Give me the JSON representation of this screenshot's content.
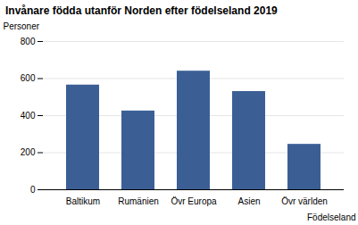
{
  "chart_data": {
    "type": "bar",
    "title": "Invånare födda utanför Norden efter födelseland 2019",
    "y_label": "Personer",
    "x_label": "Födelseland",
    "categories": [
      "Baltikum",
      "Rumänien",
      "Övr Europa",
      "Asien",
      "Övr världen"
    ],
    "values": [
      565,
      425,
      640,
      530,
      245
    ],
    "color": "#3b5f95",
    "ylim": [
      0,
      800
    ],
    "yticks": [
      0,
      200,
      400,
      600,
      800
    ],
    "grid": true
  }
}
